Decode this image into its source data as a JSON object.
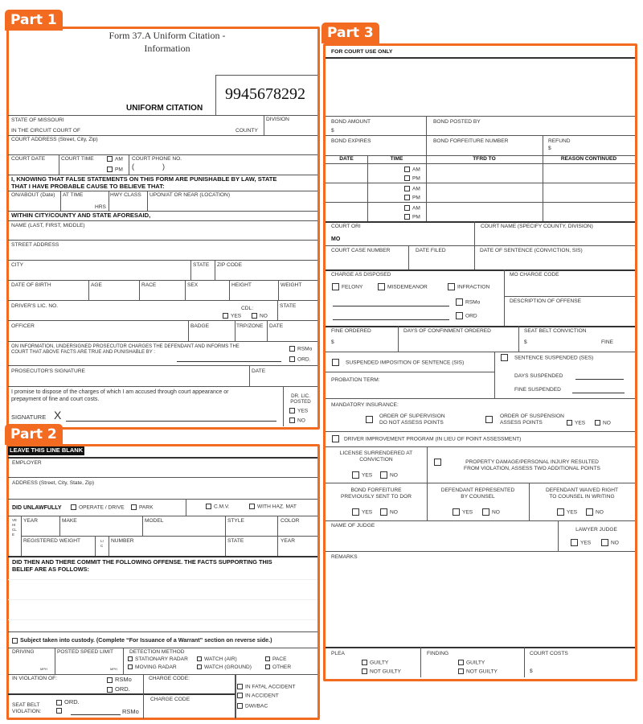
{
  "tabs": {
    "part1": "Part 1",
    "part2": "Part 2",
    "part3": "Part 3"
  },
  "accent": "#f26b21",
  "p1": {
    "title1": "Form 37.A  Uniform Citation -",
    "title2": "Information",
    "citation_number": "9945678292",
    "heading": "UNIFORM CITATION",
    "state": "STATE OF MISSOURI",
    "circuit": "IN THE CIRCUIT COURT OF",
    "county": "COUNTY",
    "division": "DIVISION",
    "court_address": "COURT ADDRESS (Street, City, Zip)",
    "court_date": "COURT DATE",
    "court_time": "COURT TIME",
    "am": "AM",
    "pm": "PM",
    "court_phone": "COURT PHONE NO.",
    "phone_paren": "(              )",
    "statement": "I, KNOWING THAT FALSE STATEMENTS ON THIS FORM ARE PUNISHABLE BY LAW, STATE",
    "statement2": "THAT I HAVE PROBABLE CAUSE TO BELIEVE THAT:",
    "on_about": "ON/ABOUT (Date)",
    "at_time": "AT TIME",
    "hrs": "HRS",
    "hwy_class": "HWY CLASS",
    "location": "UPON/AT OR NEAR (LOCATION)",
    "within": "WITHIN CITY/COUNTY AND STATE AFORESAID,",
    "name": "NAME (LAST, FIRST, MIDDLE)",
    "street": "STREET ADDRESS",
    "city": "CITY",
    "state_f": "STATE",
    "zip": "ZIP CODE",
    "dob": "DATE OF BIRTH",
    "age": "AGE",
    "race": "RACE",
    "sex": "SEX",
    "height": "HEIGHT",
    "weight": "WEIGHT",
    "dl": "DRIVER'S LIC. NO.",
    "cdl": "CDL:",
    "yes": "YES",
    "no": "NO",
    "dl_state": "STATE",
    "officer": "OFFICER",
    "badge": "BADGE",
    "trp": "TRP/ZONE",
    "date": "DATE",
    "info1": "ON INFORMATION, UNDERSIGNED PROSECUTOR CHARGES THE DEFENDANT AND INFORMS THE",
    "info2": "COURT THAT ABOVE FACTS ARE TRUE AND PUNISHABLE BY :",
    "rsmo": "RSMo",
    "ord": "ORD.",
    "pros_sig": "PROSECUTOR'S SIGNATURE",
    "pros_date": "DATE",
    "promise1": "I promise to dispose of the charges of which I am accused through court appearance or",
    "promise2": "prepayment of fine and court costs.",
    "signature": "SIGNATURE",
    "sig_x": "X",
    "dr_lic": "DR. LIC.",
    "posted": "POSTED"
  },
  "p2": {
    "blank": "LEAVE THIS LINE BLANK",
    "employer": "EMPLOYER",
    "address": "ADDRESS (Street, City, State, Zip)",
    "did_unlawfully": "DID UNLAWFULLY",
    "operate": "OPERATE / DRIVE",
    "park": "PARK",
    "cmv": "C.M.V.",
    "haz": "WITH HAZ. MAT",
    "vehicle": "VEHICLE",
    "year": "YEAR",
    "make": "MAKE",
    "model": "MODEL",
    "style": "STYLE",
    "color": "COLOR",
    "reg_weight": "REGISTERED WEIGHT",
    "lic": "LIC",
    "number": "NUMBER",
    "state": "STATE",
    "year2": "YEAR",
    "offense1": "DID THEN AND THERE COMMIT THE FOLLOWING OFFENSE. THE FACTS SUPPORTING THIS",
    "offense2": "BELIEF ARE AS FOLLOWS:",
    "custody": "Subject taken into custody. (Complete “For Issuance of a Warrant” section on reverse side.)",
    "driving": "DRIVING",
    "mph": "MPH",
    "posted_speed": "POSTED SPEED LIMIT",
    "mph2": "MPH",
    "detection": "DETECTION METHOD",
    "det": [
      "STATIONARY RADAR",
      "WATCH (AIR)",
      "PACE",
      "MOVING RADAR",
      "WATCH (GROUND)",
      "OTHER"
    ],
    "violation": "IN VIOLATION OF:",
    "rsmo": "RSMo",
    "ord": "ORD.",
    "charge_code": "CHARGE CODE:",
    "charge_code2": "CHARGE CODE",
    "fatal": "IN FATAL ACCIDENT",
    "accident": "IN ACCIDENT",
    "dwi": "DWI/BAC",
    "seat_belt1": "SEAT BELT",
    "seat_belt2": "VIOLATION:",
    "sb_ord": "ORD.",
    "sb_rsmo": "RSMo"
  },
  "p3": {
    "court_use": "FOR COURT USE ONLY",
    "bond_amount": "BOND AMOUNT",
    "dollar": "$",
    "bond_posted": "BOND POSTED BY",
    "bond_expires": "BOND EXPIRES",
    "bond_forfeit": "BOND FORFEITURE NUMBER",
    "refund": "REFUND",
    "cols": [
      "DATE",
      "TIME",
      "TFRD TO",
      "REASON CONTINUED"
    ],
    "am": "AM",
    "pm": "PM",
    "court_ori": "COURT ORI",
    "mo": "MO",
    "court_name": "COURT NAME (SPECIFY COUNTY, DIVISION)",
    "case_number": "COURT CASE NUMBER",
    "date_filed": "DATE FILED",
    "date_sentence": "DATE OF SENTENCE (CONVICTION, SIS)",
    "charge_disposed": "CHARGE AS DISPOSED",
    "felony": "FELONY",
    "misdemeanor": "MISDEMEANOR",
    "infraction": "INFRACTION",
    "rsmo": "RSMo",
    "ord": "ORD",
    "mo_charge": "MO CHARGE CODE",
    "description": "DESCRIPTION OF OFFENSE",
    "fine_ordered": "FINE ORDERED",
    "days_confinement": "DAYS OF CONFINMENT ORDERED",
    "seat_belt": "SEAT BELT CONVICTION",
    "fine": "FINE",
    "sis": "SUSPENDED IMPOSITION OF SENTENCE (SIS)",
    "ses": "SENTENCE SUSPENDED (SES)",
    "probation": "PROBATION TERM:",
    "days_suspended": "DAYS SUSPENDED",
    "fine_suspended": "FINE SUSPENDED",
    "mandatory": "MANDATORY INSURANCE:",
    "supervision1": "ORDER OF SUPERVISION",
    "supervision2": "DO NOT ASSESS POINTS",
    "suspension1": "ORDER OF SUSPENSION",
    "suspension2": "ASSESS POINTS",
    "yes": "YES",
    "no": "NO",
    "driver_improvement": "DRIVER IMPROVEMENT PROGRAM (IN LIEU OF POINT ASSESSMENT)",
    "license1": "LICENSE SURRENDERED AT",
    "license2": "CONVICTION",
    "property1": "PROPERTY DAMAGE/PERSONAL INJURY RESULTED",
    "property2": "FROM VIOLATION, ASSESS TWO ADDITIONAL POINTS",
    "bf1": "BOND FORFEITURE",
    "bf2": "PREVIOUSLY SENT TO DOR",
    "dr1": "DEFENDANT REPRESENTED",
    "dr2": "BY COUNSEL",
    "dw1": "DEFENDANT WAIVED RIGHT",
    "dw2": "TO COUNSEL IN WRITING",
    "judge": "NAME OF JUDGE",
    "lawyer_judge": "LAWYER JUDGE",
    "remarks": "REMARKS",
    "plea": "PLEA",
    "guilty": "GUILTY",
    "not_guilty": "NOT GUILTY",
    "finding": "FINDING",
    "court_costs": "COURT COSTS"
  }
}
